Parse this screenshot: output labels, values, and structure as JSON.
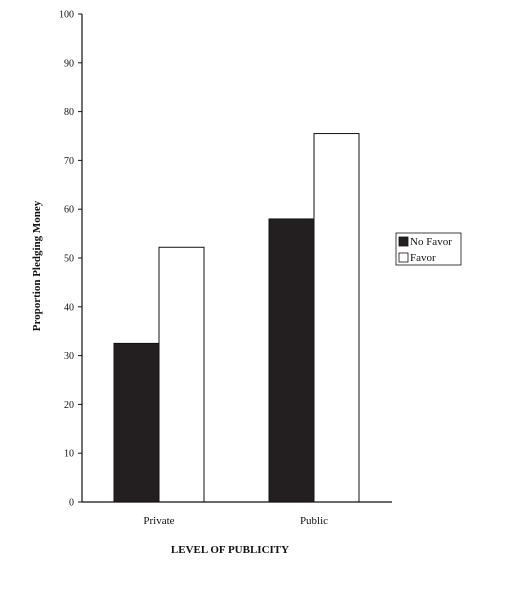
{
  "chart_data": {
    "type": "bar",
    "categories": [
      "Private",
      "Public"
    ],
    "series": [
      {
        "name": "No Favor",
        "values": [
          32.5,
          58
        ],
        "color": "#231f20"
      },
      {
        "name": "Favor",
        "values": [
          52.2,
          75.5
        ],
        "color": "#ffffff"
      }
    ],
    "title": "",
    "xlabel": "LEVEL OF PUBLICITY",
    "ylabel": "Proportion Pledging Money",
    "ylim": [
      0,
      100
    ],
    "yticks": [
      0,
      10,
      20,
      30,
      40,
      50,
      60,
      70,
      80,
      90,
      100
    ],
    "grid": false,
    "legend_placement": "right"
  }
}
